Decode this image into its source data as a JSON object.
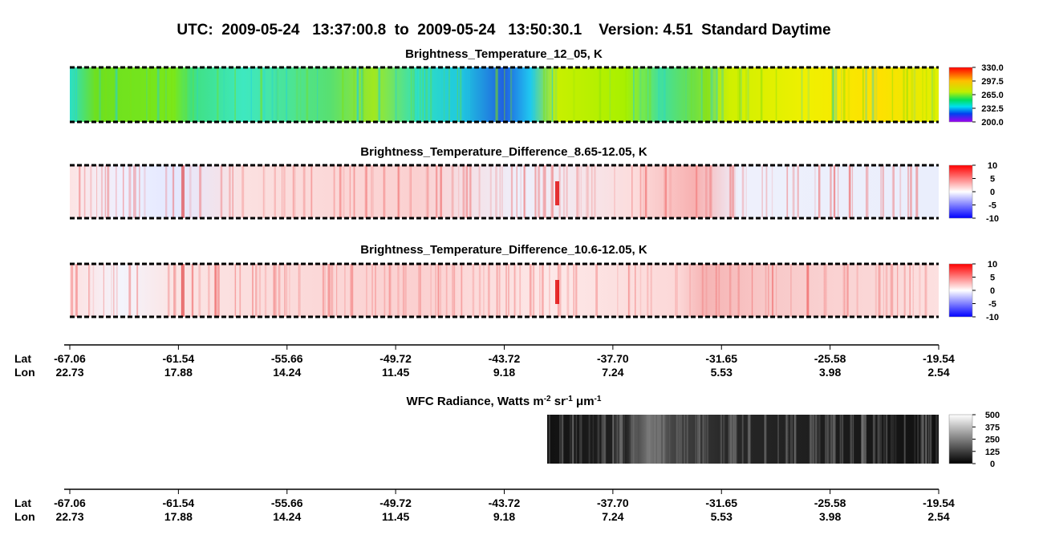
{
  "header": {
    "title": "UTC:  2009-05-24   13:37:00.8  to  2009-05-24   13:50:30.1    Version: 4.51  Standard Daytime"
  },
  "panels": [
    {
      "title_parts": [
        "Brightness_Temperature_12_05, K"
      ],
      "colorbar_ticks": [
        "330.0",
        "297.5",
        "265.0",
        "232.5",
        "200.0"
      ]
    },
    {
      "title_parts": [
        "Brightness_Temperature_Difference_8.65-12.05, K"
      ],
      "colorbar_ticks": [
        "10",
        "5",
        "0",
        "-5",
        "-10"
      ]
    },
    {
      "title_parts": [
        "Brightness_Temperature_Difference_10.6-12.05, K"
      ],
      "colorbar_ticks": [
        "10",
        "5",
        "0",
        "-5",
        "-10"
      ]
    },
    {
      "title_parts": [
        "WFC Radiance, Watts m",
        "-2",
        " sr",
        "-1",
        " μm",
        "-1"
      ],
      "colorbar_ticks": [
        "500",
        "375",
        "250",
        "125",
        "0"
      ]
    }
  ],
  "axes": [
    {
      "lat_label": "Lat",
      "lon_label": "Lon",
      "lat": [
        "-67.06",
        "-61.54",
        "-55.66",
        "-49.72",
        "-43.72",
        "-37.70",
        "-31.65",
        "-25.58",
        "-19.54"
      ],
      "lon": [
        "22.73",
        "17.88",
        "14.24",
        "11.45",
        "9.18",
        "7.24",
        "5.53",
        "3.98",
        "2.54"
      ]
    },
    {
      "lat_label": "Lat",
      "lon_label": "Lon",
      "lat": [
        "-67.06",
        "-61.54",
        "-55.66",
        "-49.72",
        "-43.72",
        "-37.70",
        "-31.65",
        "-25.58",
        "-19.54"
      ],
      "lon": [
        "22.73",
        "17.88",
        "14.24",
        "11.45",
        "9.18",
        "7.24",
        "5.53",
        "3.98",
        "2.54"
      ]
    }
  ]
}
